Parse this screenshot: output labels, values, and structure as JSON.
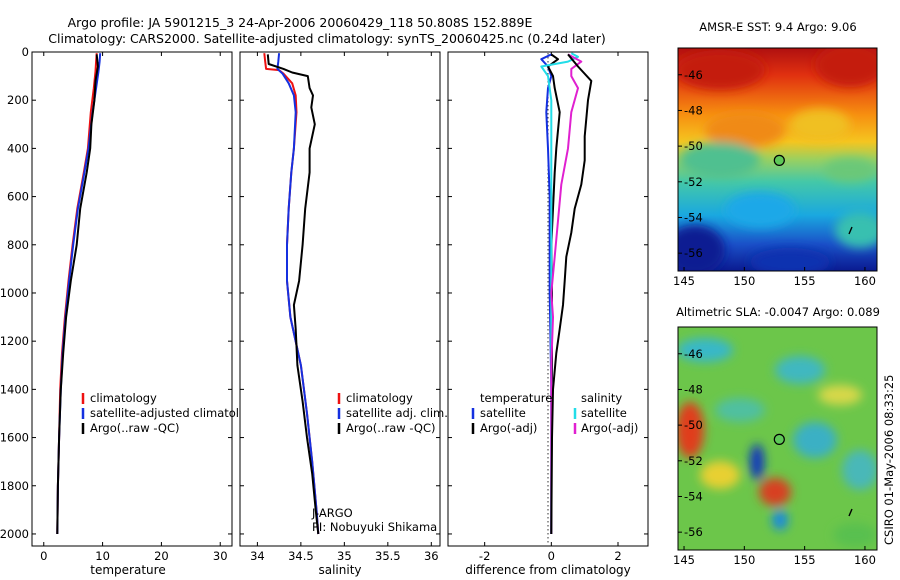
{
  "title_line1": "Argo profile: JA 5901215_3 24-Apr-2006 20060429_118 50.808S 152.889E",
  "title_line2": "Climatology: CARS2000. Satellite-adjusted climatology: synTS_20060425.nc (0.24d later)",
  "timestamp": "CSIRO 01-May-2006 08:33:25",
  "credit_line1": "J-ARGO",
  "credit_line2": "PI: Nobuyuki Shikama",
  "colors": {
    "climatology": "#ee1111",
    "satellite": "#1530e0",
    "argo": "#000000",
    "cyan": "#22dde8",
    "magenta": "#e020d0"
  },
  "chart_data": [
    {
      "type": "line",
      "xlabel": "temperature",
      "xlim": [
        -2,
        32
      ],
      "ylim": [
        2050,
        0
      ],
      "xticks": [
        0,
        10,
        20,
        30
      ],
      "yticks": [
        0,
        200,
        400,
        600,
        800,
        1000,
        1200,
        1400,
        1600,
        1800,
        2000
      ],
      "legend": [
        "climatology",
        "satellite-adjusted climatology",
        "Argo(..raw -QC)"
      ],
      "series": [
        {
          "name": "climatology",
          "color": "#ee1111",
          "points": [
            [
              9.0,
              5
            ],
            [
              8.9,
              40
            ],
            [
              8.8,
              80
            ],
            [
              8.5,
              150
            ],
            [
              8.0,
              250
            ],
            [
              7.5,
              400
            ],
            [
              6.8,
              500
            ],
            [
              5.7,
              650
            ],
            [
              4.9,
              800
            ],
            [
              4.2,
              950
            ],
            [
              3.6,
              1100
            ],
            [
              3.1,
              1250
            ],
            [
              2.8,
              1400
            ],
            [
              2.6,
              1600
            ],
            [
              2.4,
              1800
            ],
            [
              2.3,
              2000
            ]
          ]
        },
        {
          "name": "satellite-adjusted climatology",
          "color": "#1530e0",
          "points": [
            [
              9.6,
              5
            ],
            [
              9.5,
              40
            ],
            [
              9.3,
              80
            ],
            [
              8.9,
              150
            ],
            [
              8.3,
              250
            ],
            [
              7.6,
              400
            ],
            [
              6.9,
              500
            ],
            [
              5.8,
              650
            ],
            [
              5.0,
              800
            ],
            [
              4.3,
              950
            ],
            [
              3.7,
              1100
            ],
            [
              3.2,
              1250
            ],
            [
              2.9,
              1400
            ],
            [
              2.6,
              1600
            ],
            [
              2.4,
              1800
            ],
            [
              2.3,
              2000
            ]
          ]
        },
        {
          "name": "Argo(..raw -QC)",
          "color": "#000000",
          "points": [
            [
              9.0,
              10
            ],
            [
              9.2,
              60
            ],
            [
              8.8,
              120
            ],
            [
              8.6,
              200
            ],
            [
              8.1,
              300
            ],
            [
              7.9,
              400
            ],
            [
              7.3,
              500
            ],
            [
              6.2,
              650
            ],
            [
              5.6,
              800
            ],
            [
              4.6,
              950
            ],
            [
              3.8,
              1100
            ],
            [
              3.3,
              1250
            ],
            [
              2.9,
              1400
            ],
            [
              2.6,
              1600
            ],
            [
              2.4,
              1800
            ],
            [
              2.3,
              2000
            ]
          ]
        }
      ]
    },
    {
      "type": "line",
      "xlabel": "salinity",
      "xlim": [
        33.8,
        36.1
      ],
      "ylim": [
        2050,
        0
      ],
      "xticks": [
        34,
        34.5,
        35,
        35.5,
        36
      ],
      "legend": [
        "climatology",
        "satellite adj. clim.",
        "Argo(..raw -QC)"
      ],
      "series": [
        {
          "name": "climatology",
          "color": "#ee1111",
          "points": [
            [
              34.08,
              5
            ],
            [
              34.09,
              40
            ],
            [
              34.1,
              70
            ],
            [
              34.25,
              75
            ],
            [
              34.3,
              90
            ],
            [
              34.4,
              130
            ],
            [
              34.44,
              180
            ],
            [
              34.45,
              250
            ],
            [
              34.42,
              400
            ],
            [
              34.39,
              500
            ],
            [
              34.36,
              650
            ],
            [
              34.34,
              800
            ],
            [
              34.34,
              950
            ],
            [
              34.38,
              1100
            ],
            [
              34.5,
              1300
            ],
            [
              34.57,
              1500
            ],
            [
              34.63,
              1700
            ],
            [
              34.68,
              1900
            ],
            [
              34.7,
              2000
            ]
          ]
        },
        {
          "name": "satellite adj. clim.",
          "color": "#1530e0",
          "points": [
            [
              34.25,
              5
            ],
            [
              34.24,
              40
            ],
            [
              34.23,
              70
            ],
            [
              34.29,
              90
            ],
            [
              34.36,
              130
            ],
            [
              34.42,
              180
            ],
            [
              34.44,
              250
            ],
            [
              34.42,
              400
            ],
            [
              34.39,
              500
            ],
            [
              34.36,
              650
            ],
            [
              34.34,
              800
            ],
            [
              34.34,
              950
            ],
            [
              34.38,
              1100
            ],
            [
              34.5,
              1300
            ],
            [
              34.57,
              1500
            ],
            [
              34.63,
              1700
            ],
            [
              34.68,
              1900
            ],
            [
              34.7,
              2000
            ]
          ]
        },
        {
          "name": "Argo(..raw -QC)",
          "color": "#000000",
          "points": [
            [
              34.12,
              10
            ],
            [
              34.13,
              50
            ],
            [
              34.3,
              70
            ],
            [
              34.4,
              85
            ],
            [
              34.58,
              100
            ],
            [
              34.6,
              150
            ],
            [
              34.64,
              180
            ],
            [
              34.62,
              230
            ],
            [
              34.66,
              300
            ],
            [
              34.6,
              400
            ],
            [
              34.6,
              500
            ],
            [
              34.55,
              650
            ],
            [
              34.52,
              800
            ],
            [
              34.48,
              950
            ],
            [
              34.42,
              1050
            ],
            [
              34.44,
              1150
            ],
            [
              34.46,
              1300
            ],
            [
              34.52,
              1450
            ],
            [
              34.57,
              1600
            ],
            [
              34.63,
              1750
            ],
            [
              34.67,
              1900
            ],
            [
              34.7,
              2000
            ]
          ]
        }
      ]
    },
    {
      "type": "line",
      "xlabel": "difference from climatology",
      "xlim": [
        -3.1,
        2.9
      ],
      "ylim": [
        2050,
        0
      ],
      "xticks": [
        -2,
        0,
        2
      ],
      "legend_left": [
        "temperature",
        "satellite",
        "Argo(-adj)"
      ],
      "legend_right": [
        "salinity",
        "satellite",
        "Argo(-adj)"
      ],
      "series": [
        {
          "name": "temperature satellite",
          "color": "#1530e0",
          "points": [
            [
              0.0,
              10
            ],
            [
              -0.3,
              30
            ],
            [
              -0.1,
              60
            ],
            [
              0.0,
              100
            ],
            [
              -0.1,
              150
            ],
            [
              -0.15,
              250
            ],
            [
              -0.1,
              400
            ],
            [
              -0.05,
              600
            ],
            [
              -0.05,
              800
            ],
            [
              -0.05,
              1000
            ],
            [
              0.0,
              1400
            ],
            [
              0.0,
              1800
            ],
            [
              0.0,
              2000
            ]
          ]
        },
        {
          "name": "temperature Argo(-adj)",
          "color": "#000000",
          "points": [
            [
              0.0,
              10
            ],
            [
              0.2,
              30
            ],
            [
              -0.1,
              60
            ],
            [
              0.05,
              100
            ],
            [
              0.1,
              150
            ],
            [
              0.25,
              250
            ],
            [
              0.15,
              400
            ],
            [
              0.1,
              500
            ],
            [
              0.05,
              650
            ],
            [
              0.0,
              800
            ],
            [
              0.02,
              1000
            ],
            [
              0.02,
              1400
            ],
            [
              0.0,
              1800
            ],
            [
              0.0,
              2000
            ]
          ]
        },
        {
          "name": "salinity satellite",
          "color": "#22dde8",
          "points": [
            [
              0.6,
              5
            ],
            [
              0.8,
              20
            ],
            [
              0.5,
              40
            ],
            [
              -0.3,
              60
            ],
            [
              -0.1,
              100
            ],
            [
              0.0,
              200
            ],
            [
              0.0,
              400
            ],
            [
              0.0,
              600
            ],
            [
              0.0,
              800
            ],
            [
              0.0,
              1200
            ],
            [
              0.0,
              1600
            ],
            [
              0.0,
              2000
            ]
          ]
        },
        {
          "name": "salinity Argo(-adj)",
          "color": "#e020d0",
          "points": [
            [
              0.5,
              10
            ],
            [
              0.9,
              40
            ],
            [
              0.6,
              70
            ],
            [
              0.6,
              100
            ],
            [
              0.8,
              150
            ],
            [
              0.6,
              250
            ],
            [
              0.5,
              400
            ],
            [
              0.3,
              550
            ],
            [
              0.2,
              700
            ],
            [
              0.1,
              850
            ],
            [
              0.0,
              1000
            ],
            [
              0.05,
              1100
            ],
            [
              0.0,
              1300
            ],
            [
              0.0,
              1600
            ],
            [
              0.0,
              2000
            ]
          ]
        },
        {
          "name": "Argo(-adj) salinity raw",
          "color": "#000000",
          "points": [
            [
              0.5,
              10
            ],
            [
              0.8,
              60
            ],
            [
              1.2,
              120
            ],
            [
              1.1,
              200
            ],
            [
              1.0,
              350
            ],
            [
              1.0,
              450
            ],
            [
              0.9,
              550
            ],
            [
              0.7,
              650
            ],
            [
              0.6,
              750
            ],
            [
              0.45,
              850
            ],
            [
              0.4,
              950
            ],
            [
              0.35,
              1050
            ],
            [
              0.25,
              1150
            ],
            [
              0.15,
              1250
            ],
            [
              0.05,
              1400
            ],
            [
              0.02,
              1600
            ],
            [
              0.0,
              2000
            ]
          ]
        }
      ]
    },
    {
      "type": "heatmap",
      "title": "AMSR-E SST: 9.4  Argo: 9.06",
      "xlim": [
        144.5,
        161
      ],
      "ylim": [
        -57,
        -44.5
      ],
      "xticks": [
        145,
        150,
        155,
        160
      ],
      "yticks": [
        -46,
        -48,
        -50,
        -52,
        -54,
        -56
      ],
      "marker": [
        152.9,
        -50.8
      ]
    },
    {
      "type": "heatmap",
      "title": "Altimetric SLA: -0.0047  Argo: 0.089",
      "xlim": [
        144.5,
        161
      ],
      "ylim": [
        -57,
        -44.5
      ],
      "xticks": [
        145,
        150,
        155,
        160
      ],
      "yticks": [
        -46,
        -48,
        -50,
        -52,
        -54,
        -56
      ],
      "marker": [
        152.9,
        -50.8
      ]
    }
  ]
}
